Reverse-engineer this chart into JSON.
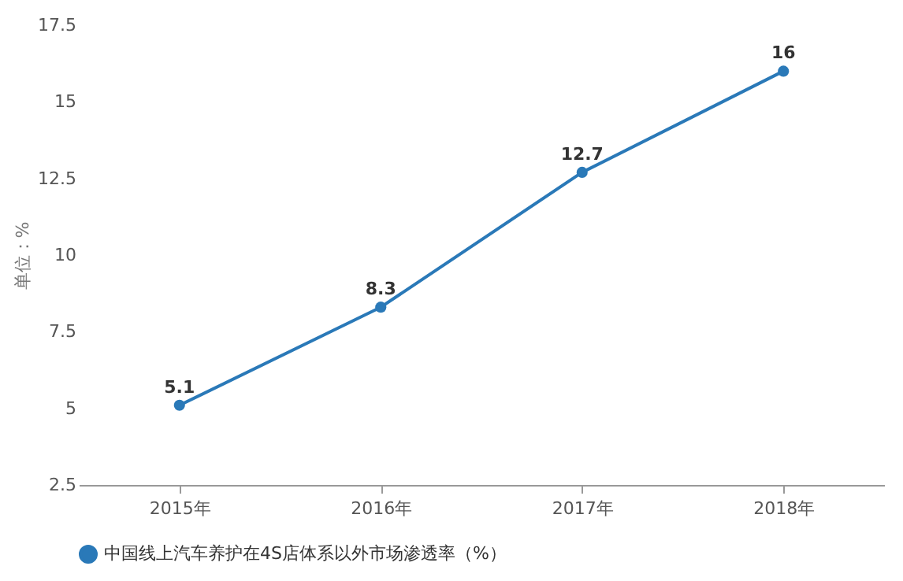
{
  "chart_data": {
    "type": "line",
    "ylabel": "单位：%",
    "categories": [
      "2015年",
      "2016年",
      "2017年",
      "2018年"
    ],
    "series": [
      {
        "name": "中国线上汽车养护在4S店体系以外市场渗透率（%）",
        "color": "#2a79b8",
        "values": [
          5.1,
          8.3,
          12.7,
          16
        ]
      }
    ],
    "ylim": [
      2.5,
      17.5
    ],
    "yticks": [
      2.5,
      5,
      7.5,
      10,
      12.5,
      15,
      17.5
    ],
    "data_labels": true,
    "marker": "circle",
    "legend": "bottom",
    "grid": false
  }
}
